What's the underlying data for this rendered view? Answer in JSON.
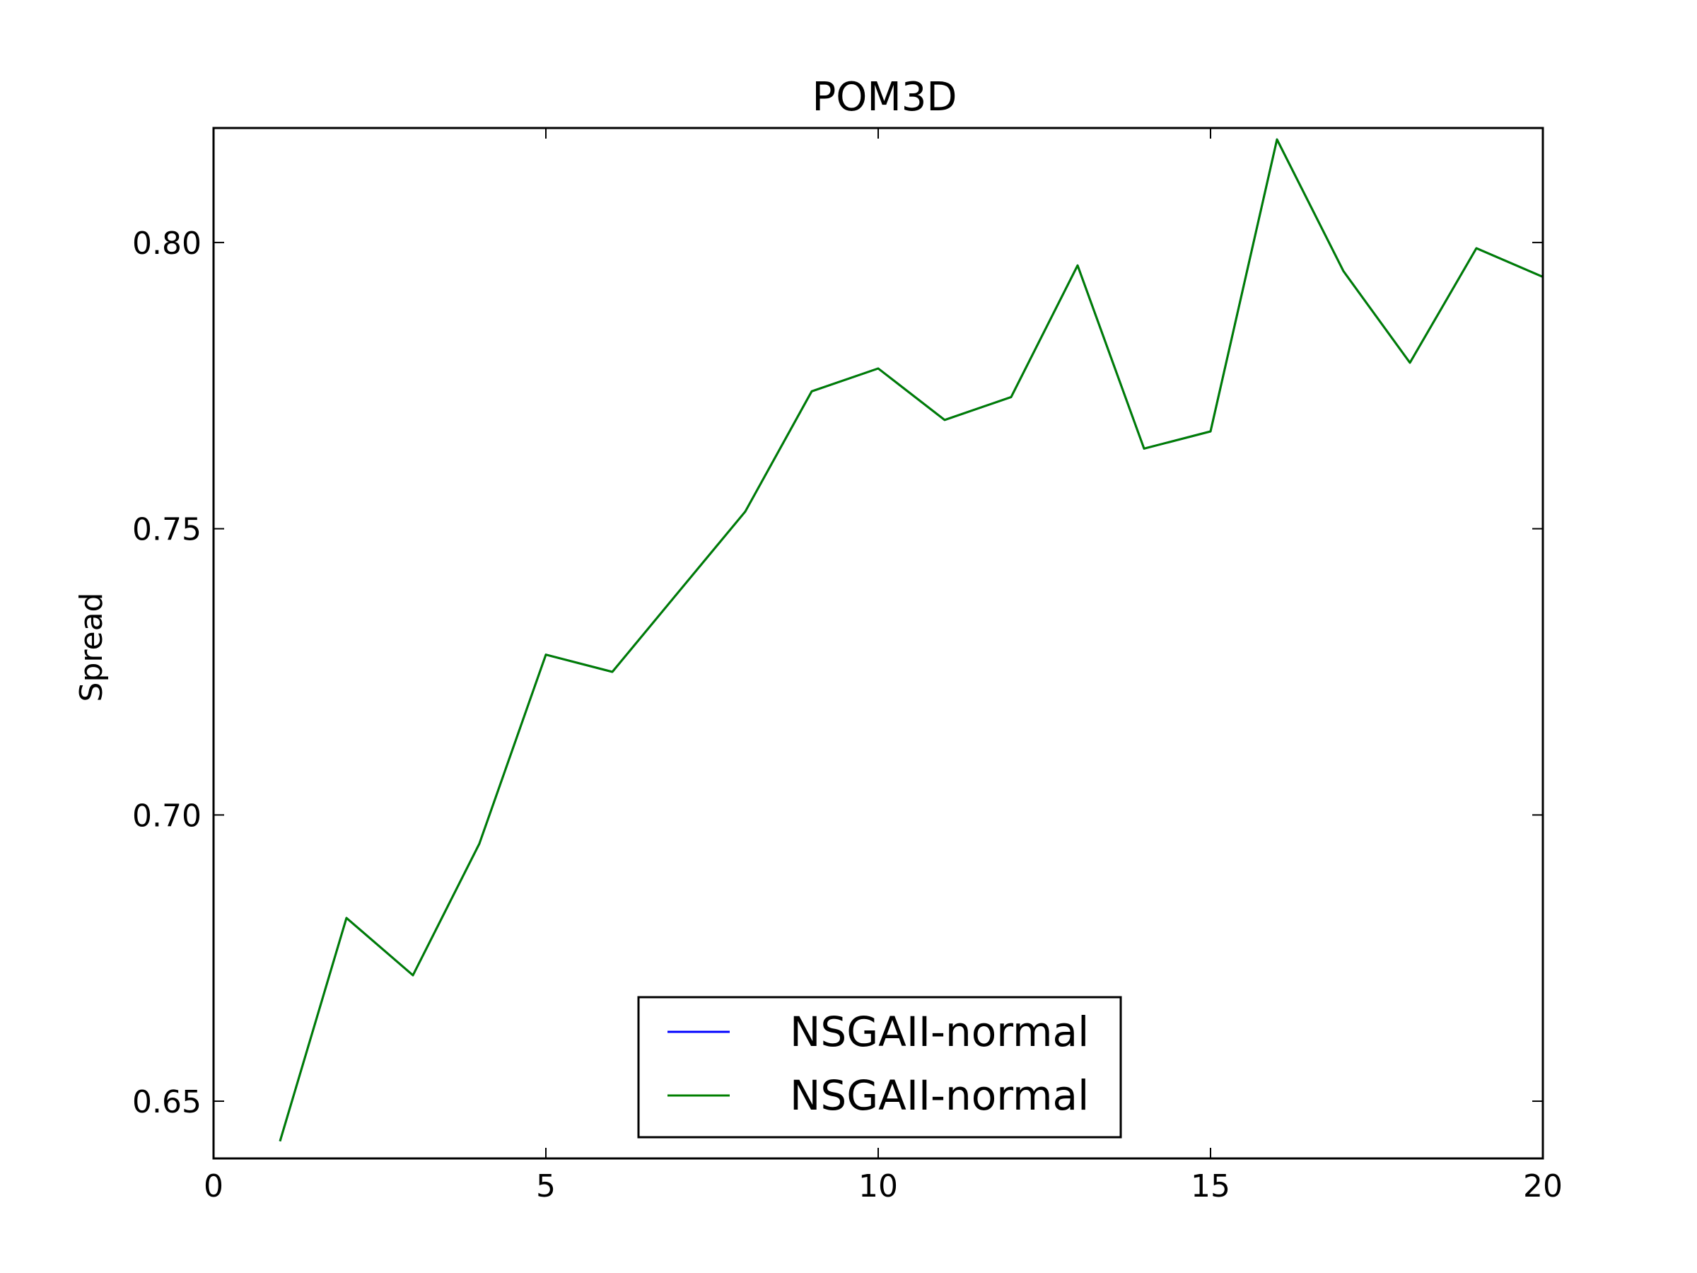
{
  "chart_data": {
    "type": "line",
    "title": "POM3D",
    "xlabel": "",
    "ylabel": "Spread",
    "xlim": [
      0,
      20
    ],
    "ylim": [
      0.64,
      0.82
    ],
    "xticks": [
      0,
      5,
      10,
      15,
      20
    ],
    "xtick_labels": [
      "0",
      "5",
      "10",
      "15",
      "20"
    ],
    "yticks": [
      0.65,
      0.7,
      0.75,
      0.8
    ],
    "ytick_labels": [
      "0.65",
      "0.70",
      "0.75",
      "0.80"
    ],
    "grid": false,
    "legend_position": "lower-center",
    "x": [
      1,
      2,
      3,
      4,
      5,
      6,
      7,
      8,
      9,
      10,
      11,
      12,
      13,
      14,
      15,
      16,
      17,
      18,
      19,
      20
    ],
    "series": [
      {
        "name": "NSGAII-normal",
        "color": "#0000ff",
        "values": [
          0.643,
          0.682,
          0.672,
          0.695,
          0.728,
          0.725,
          0.739,
          0.753,
          0.774,
          0.778,
          0.769,
          0.773,
          0.796,
          0.764,
          0.767,
          0.818,
          0.795,
          0.779,
          0.799,
          0.794
        ]
      },
      {
        "name": "NSGAII-normal",
        "color": "#007f00",
        "values": [
          0.643,
          0.682,
          0.672,
          0.695,
          0.728,
          0.725,
          0.739,
          0.753,
          0.774,
          0.778,
          0.769,
          0.773,
          0.796,
          0.764,
          0.767,
          0.818,
          0.795,
          0.779,
          0.799,
          0.794
        ]
      }
    ]
  }
}
